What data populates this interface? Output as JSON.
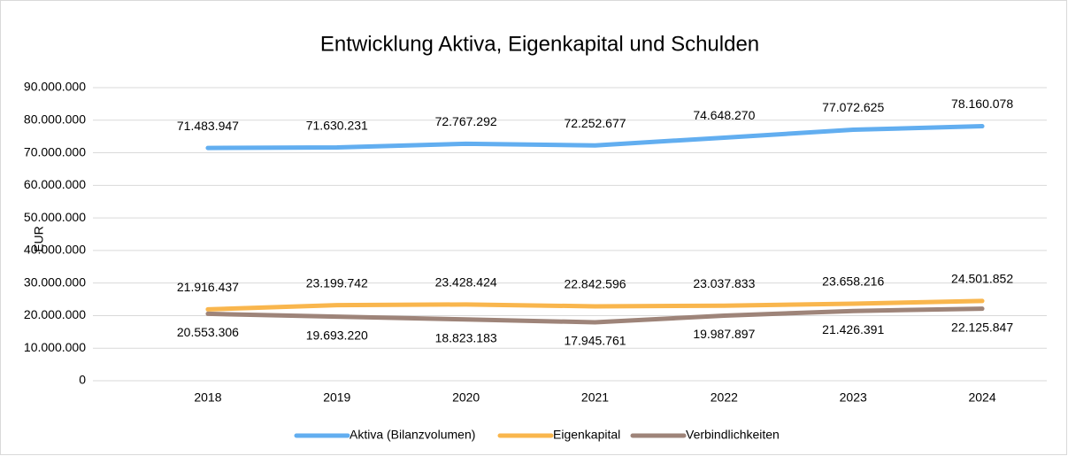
{
  "chart_data": {
    "type": "line",
    "title": "Entwicklung Aktiva, Eigenkapital und Schulden",
    "y_label": "EUR",
    "categories": [
      "2018",
      "2019",
      "2020",
      "2021",
      "2022",
      "2023",
      "2024"
    ],
    "series": [
      {
        "name": "Aktiva (Bilanzvolumen)",
        "color": "#62aef0",
        "values": [
          71483947,
          71630231,
          72767292,
          72252677,
          74648270,
          77072625,
          78160078
        ],
        "value_labels": [
          "71.483.947",
          "71.630.231",
          "72.767.292",
          "72.252.677",
          "74.648.270",
          "77.072.625",
          "78.160.078"
        ]
      },
      {
        "name": "Eigenkapital",
        "color": "#f9b64d",
        "values": [
          21916437,
          23199742,
          23428424,
          22842596,
          23037833,
          23658216,
          24501852
        ],
        "value_labels": [
          "21.916.437",
          "23.199.742",
          "23.428.424",
          "22.842.596",
          "23.037.833",
          "23.658.216",
          "24.501.852"
        ]
      },
      {
        "name": "Verbindlichkeiten",
        "color": "#9e8479",
        "values": [
          20553306,
          19693220,
          18823183,
          17945761,
          19987897,
          21426391,
          22125847
        ],
        "value_labels": [
          "20.553.306",
          "19.693.220",
          "18.823.183",
          "17.945.761",
          "19.987.897",
          "21.426.391",
          "22.125.847"
        ]
      }
    ],
    "ylim": [
      0,
      90000000
    ],
    "yticks": [
      0,
      {
        "value": 10000000,
        "label": "10.000.000"
      },
      {
        "value": 20000000,
        "label": "20.000.000"
      },
      {
        "value": 30000000,
        "label": "30.000.000"
      },
      {
        "value": 40000000,
        "label": "40.000.000"
      },
      {
        "value": 50000000,
        "label": "50.000.000"
      },
      {
        "value": 60000000,
        "label": "60.000.000"
      },
      {
        "value": 70000000,
        "label": "70.000.000"
      },
      {
        "value": 80000000,
        "label": "80.000.000"
      },
      {
        "value": 90000000,
        "label": "90.000.000"
      }
    ],
    "grid": true,
    "legend": "bottom"
  }
}
